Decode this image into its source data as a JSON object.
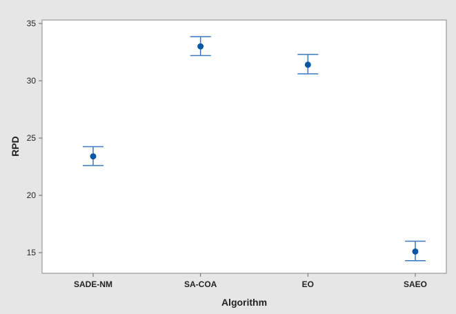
{
  "chart_data": {
    "type": "scatter",
    "subtype": "interval-plot",
    "title": "",
    "xlabel": "Algorithm",
    "ylabel": "RPD",
    "categories": [
      "SADE-NM",
      "SA-COA",
      "EO",
      "SAEO"
    ],
    "means": [
      23.4,
      33.0,
      31.4,
      15.1
    ],
    "lower": [
      22.6,
      32.2,
      30.6,
      14.3
    ],
    "upper": [
      24.25,
      33.85,
      32.3,
      16.0
    ],
    "ylim": [
      13.2,
      35.3
    ],
    "yticks": [
      15,
      20,
      25,
      30,
      35
    ],
    "grid": false,
    "legend": "none",
    "colors": {
      "marker": "#0a57a4",
      "interval": "#3a78c0",
      "plot_background": "#ffffff",
      "outer_background": "#e6e6e6",
      "axis": "#888888"
    }
  }
}
